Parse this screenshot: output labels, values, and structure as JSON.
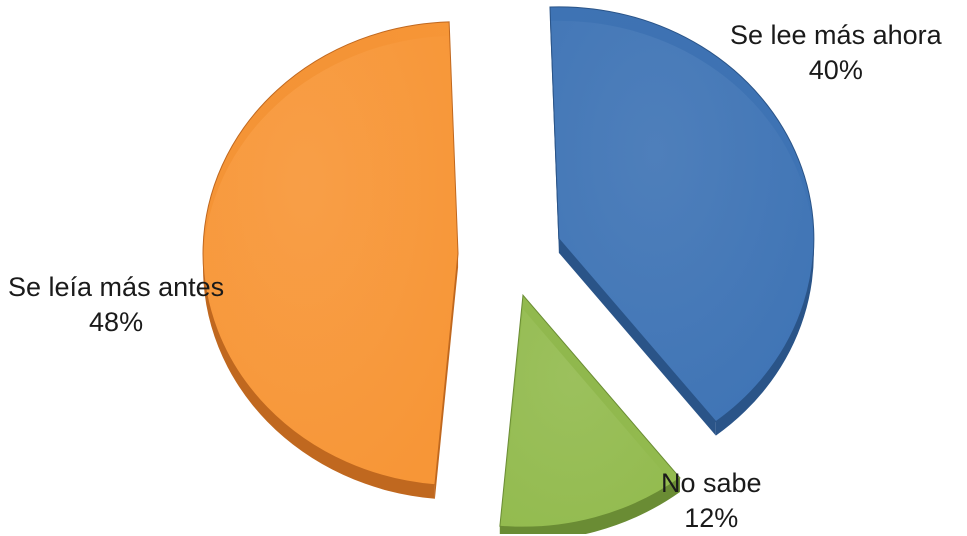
{
  "chart_data": {
    "type": "pie",
    "title": "",
    "slices": [
      {
        "label": "Se lee más ahora",
        "value": 40,
        "value_label": "40%",
        "color": "#3f74b5",
        "side_color": "#2a5488"
      },
      {
        "label": "No sabe",
        "value": 12,
        "value_label": "12%",
        "color": "#93bb4f",
        "side_color": "#6a8c34"
      },
      {
        "label": "Se leía más antes",
        "value": 48,
        "value_label": "48%",
        "color": "#f79637",
        "side_color": "#c0681f"
      }
    ],
    "exploded": true,
    "style": "3d",
    "legend": "none",
    "data_labels": "outside"
  }
}
